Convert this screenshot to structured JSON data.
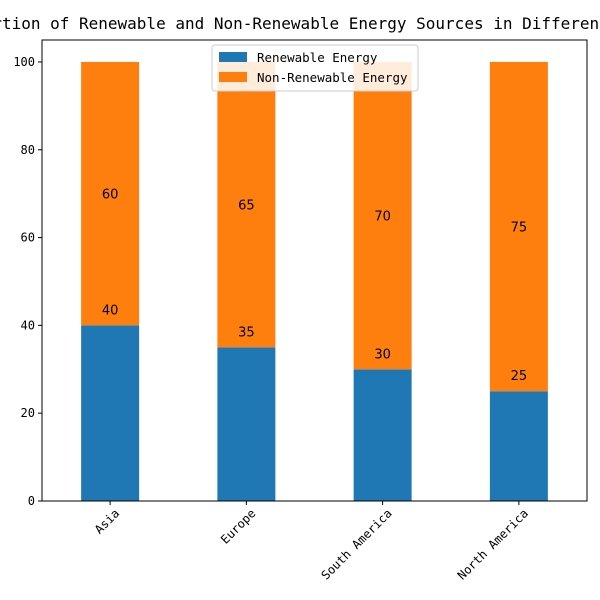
{
  "chart_data": {
    "type": "bar",
    "stacked": true,
    "title": "Proportion of Renewable and Non-Renewable Energy Sources in Different Regions",
    "xlabel": "",
    "ylabel": "",
    "categories": [
      "Asia",
      "Europe",
      "South America",
      "North America"
    ],
    "series": [
      {
        "name": "Renewable Energy",
        "values": [
          40,
          35,
          30,
          25
        ],
        "color": "#1f77b4"
      },
      {
        "name": "Non-Renewable Energy",
        "values": [
          60,
          65,
          70,
          75
        ],
        "color": "#ff7f0e"
      }
    ],
    "ylim": [
      0,
      105
    ],
    "yticks": [
      0,
      20,
      40,
      60,
      80,
      100
    ],
    "xtick_rotation": 45,
    "grid": false,
    "legend": "upper center"
  }
}
